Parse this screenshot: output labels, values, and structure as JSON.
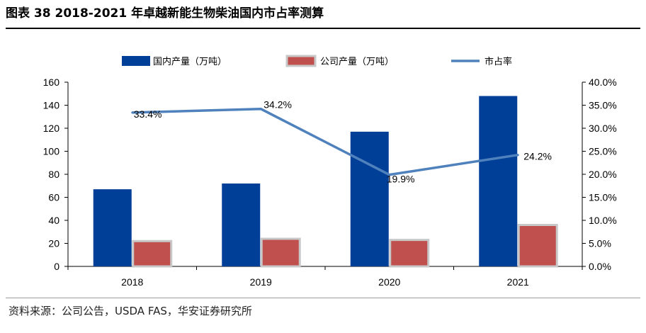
{
  "figure_title": "图表 38 2018-2021 年卓越新能生物柴油国内市占率测算",
  "source": "资料来源：公司公告，USDA FAS，华安证券研究所",
  "colors": {
    "domestic_bar": "#003f98",
    "company_bar": "#c0504d",
    "company_bar_edge": "#c8c8c8",
    "share_line": "#4f81bd"
  },
  "chart_data": {
    "type": "bar",
    "categories": [
      "2018",
      "2019",
      "2020",
      "2021"
    ],
    "series": [
      {
        "name": "国内产量（万吨）",
        "type": "bar",
        "axis": "left",
        "values": [
          67,
          72,
          117,
          148
        ]
      },
      {
        "name": "公司产量（万吨）",
        "type": "bar",
        "axis": "left",
        "values": [
          22,
          24,
          23,
          36
        ]
      },
      {
        "name": "市占率",
        "type": "line",
        "axis": "right",
        "values": [
          33.4,
          34.2,
          19.9,
          24.2
        ],
        "labels": [
          "33.4%",
          "34.2%",
          "19.9%",
          "24.2%"
        ]
      }
    ],
    "left_axis": {
      "ylim": [
        0,
        160
      ],
      "ticks": [
        "0",
        "20",
        "40",
        "60",
        "80",
        "100",
        "120",
        "140",
        "160"
      ]
    },
    "right_axis": {
      "ylim": [
        0,
        40
      ],
      "ticks": [
        "0.0%",
        "5.0%",
        "10.0%",
        "15.0%",
        "20.0%",
        "25.0%",
        "30.0%",
        "35.0%",
        "40.0%"
      ]
    },
    "legend_position": "top",
    "grid": false
  }
}
